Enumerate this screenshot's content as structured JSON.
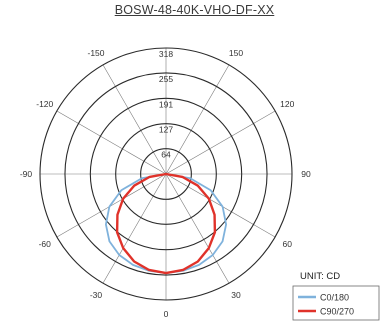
{
  "chart_data": {
    "type": "polar",
    "title": "BOSW-48-40K-VHO-DF-XX",
    "unit_label": "UNIT: CD",
    "radial_ticks": [
      "64",
      "127",
      "191",
      "255",
      "318"
    ],
    "radial_max": 318,
    "angle_tick_labels": [
      {
        "angle": 0,
        "label": "0"
      },
      {
        "angle": 30,
        "label": "30"
      },
      {
        "angle": -30,
        "label": "-30"
      },
      {
        "angle": 60,
        "label": "60"
      },
      {
        "angle": -60,
        "label": "-60"
      },
      {
        "angle": 90,
        "label": "90"
      },
      {
        "angle": -90,
        "label": "-90"
      },
      {
        "angle": 120,
        "label": "120"
      },
      {
        "angle": -120,
        "label": "-120"
      },
      {
        "angle": 150,
        "label": "150"
      },
      {
        "angle": -150,
        "label": "-150"
      },
      {
        "angle": 180,
        "label": "318"
      }
    ],
    "series": [
      {
        "name": "C0/180",
        "color": "#7fb2dc",
        "angles": [
          0,
          10,
          20,
          30,
          40,
          50,
          60,
          70,
          80,
          90
        ],
        "values": [
          250,
          248,
          244,
          236,
          222,
          198,
          165,
          120,
          62,
          0
        ]
      },
      {
        "name": "C90/270",
        "color": "#e0322a",
        "angles": [
          0,
          10,
          20,
          30,
          40,
          50,
          60,
          70,
          80,
          90
        ],
        "values": [
          250,
          246,
          235,
          216,
          192,
          160,
          125,
          85,
          42,
          0
        ]
      }
    ]
  }
}
